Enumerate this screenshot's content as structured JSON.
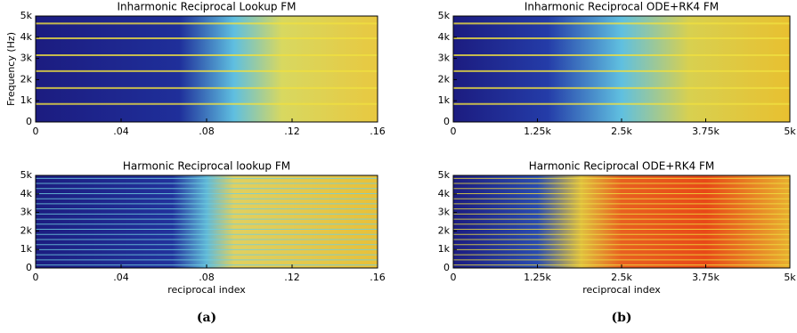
{
  "chart_data": [
    {
      "type": "spectrogram",
      "title": "Inharmonic Reciprocal Lookup FM",
      "ylabel": "Frequency (Hz)",
      "xlim": [
        0,
        0.16
      ],
      "xticks": [
        0,
        {
          "value": 0.04,
          "label": ".04"
        },
        {
          "value": 0.08,
          "label": ".08"
        },
        {
          "value": 0.12,
          "label": ".12"
        },
        {
          "value": 0.16,
          "label": ".16"
        }
      ],
      "ylim": [
        0,
        5000
      ],
      "yticks": [
        0,
        {
          "value": 1000,
          "label": "1k"
        },
        {
          "value": 2000,
          "label": "2k"
        },
        {
          "value": 3000,
          "label": "3k"
        },
        {
          "value": 4000,
          "label": "4k"
        },
        {
          "value": 5000,
          "label": "5k"
        }
      ]
    },
    {
      "type": "spectrogram",
      "title": "Inharmonic Reciprocal ODE+RK4 FM",
      "xlim": [
        0,
        5000
      ],
      "xticks": [
        0,
        {
          "value": 1250,
          "label": "1.25k"
        },
        {
          "value": 2500,
          "label": "2.5k"
        },
        {
          "value": 3750,
          "label": "3.75k"
        },
        {
          "value": 5000,
          "label": "5k"
        }
      ],
      "ylim": [
        0,
        5000
      ],
      "yticks": [
        0,
        {
          "value": 1000,
          "label": "1k"
        },
        {
          "value": 2000,
          "label": "2k"
        },
        {
          "value": 3000,
          "label": "3k"
        },
        {
          "value": 4000,
          "label": "4k"
        },
        {
          "value": 5000,
          "label": "5k"
        }
      ]
    },
    {
      "type": "spectrogram",
      "title": "Harmonic Reciprocal lookup FM",
      "xlabel": "reciprocal index",
      "xlim": [
        0,
        0.16
      ],
      "xticks": [
        0,
        {
          "value": 0.04,
          "label": ".04"
        },
        {
          "value": 0.08,
          "label": ".08"
        },
        {
          "value": 0.12,
          "label": ".12"
        },
        {
          "value": 0.16,
          "label": ".16"
        }
      ],
      "ylim": [
        0,
        5000
      ],
      "yticks": [
        0,
        {
          "value": 1000,
          "label": "1k"
        },
        {
          "value": 2000,
          "label": "2k"
        },
        {
          "value": 3000,
          "label": "3k"
        },
        {
          "value": 4000,
          "label": "4k"
        },
        {
          "value": 5000,
          "label": "5k"
        }
      ]
    },
    {
      "type": "spectrogram",
      "title": "Harmonic Reciprocal ODE+RK4 FM",
      "xlabel": "reciprocal index",
      "xlim": [
        0,
        5000
      ],
      "xticks": [
        0,
        {
          "value": 1250,
          "label": "1.25k"
        },
        {
          "value": 2500,
          "label": "2.5k"
        },
        {
          "value": 3750,
          "label": "3.75k"
        },
        {
          "value": 5000,
          "label": "5k"
        }
      ],
      "ylim": [
        0,
        5000
      ],
      "yticks": [
        0,
        {
          "value": 1000,
          "label": "1k"
        },
        {
          "value": 2000,
          "label": "2k"
        },
        {
          "value": 3000,
          "label": "3k"
        },
        {
          "value": 4000,
          "label": "4k"
        },
        {
          "value": 5000,
          "label": "5k"
        }
      ]
    }
  ],
  "captions": [
    "(a)",
    "(b)"
  ]
}
